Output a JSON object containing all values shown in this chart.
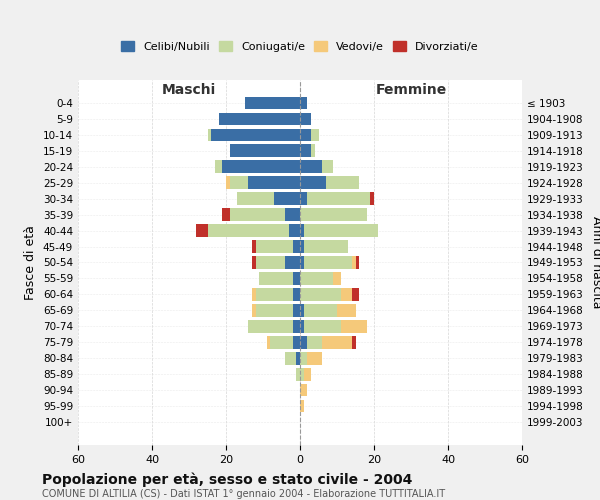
{
  "age_groups": [
    "0-4",
    "5-9",
    "10-14",
    "15-19",
    "20-24",
    "25-29",
    "30-34",
    "35-39",
    "40-44",
    "45-49",
    "50-54",
    "55-59",
    "60-64",
    "65-69",
    "70-74",
    "75-79",
    "80-84",
    "85-89",
    "90-94",
    "95-99",
    "100+"
  ],
  "birth_years": [
    "1999-2003",
    "1994-1998",
    "1989-1993",
    "1984-1988",
    "1979-1983",
    "1974-1978",
    "1969-1973",
    "1964-1968",
    "1959-1963",
    "1954-1958",
    "1949-1953",
    "1944-1948",
    "1939-1943",
    "1934-1938",
    "1929-1933",
    "1924-1928",
    "1919-1923",
    "1914-1918",
    "1909-1913",
    "1904-1908",
    "≤ 1903"
  ],
  "maschi": {
    "celibi": [
      15,
      22,
      24,
      19,
      21,
      14,
      7,
      4,
      3,
      2,
      4,
      2,
      2,
      2,
      2,
      2,
      1,
      0,
      0,
      0,
      0
    ],
    "coniugati": [
      0,
      0,
      1,
      0,
      2,
      5,
      10,
      15,
      22,
      10,
      8,
      9,
      10,
      10,
      12,
      6,
      3,
      1,
      0,
      0,
      0
    ],
    "vedovi": [
      0,
      0,
      0,
      0,
      0,
      1,
      0,
      0,
      0,
      0,
      0,
      0,
      1,
      1,
      0,
      1,
      0,
      0,
      0,
      0,
      0
    ],
    "divorziati": [
      0,
      0,
      0,
      0,
      0,
      0,
      0,
      2,
      3,
      1,
      1,
      0,
      0,
      0,
      0,
      0,
      0,
      0,
      0,
      0,
      0
    ]
  },
  "femmine": {
    "nubili": [
      2,
      3,
      3,
      3,
      6,
      7,
      2,
      0,
      1,
      1,
      1,
      0,
      0,
      1,
      1,
      2,
      0,
      0,
      0,
      0,
      0
    ],
    "coniugate": [
      0,
      0,
      2,
      1,
      3,
      9,
      17,
      18,
      20,
      12,
      13,
      9,
      11,
      9,
      10,
      4,
      2,
      1,
      0,
      0,
      0
    ],
    "vedove": [
      0,
      0,
      0,
      0,
      0,
      0,
      0,
      0,
      0,
      0,
      1,
      2,
      3,
      5,
      7,
      8,
      4,
      2,
      2,
      1,
      0
    ],
    "divorziate": [
      0,
      0,
      0,
      0,
      0,
      0,
      1,
      0,
      0,
      0,
      1,
      0,
      2,
      0,
      0,
      1,
      0,
      0,
      0,
      0,
      0
    ]
  },
  "colors": {
    "celibi": "#3A6EA5",
    "coniugati": "#C5D9A0",
    "vedovi": "#F5C97A",
    "divorziati": "#C0302A"
  },
  "xlim": 60,
  "title": "Popolazione per età, sesso e stato civile - 2004",
  "subtitle": "COMUNE DI ALTILIA (CS) - Dati ISTAT 1° gennaio 2004 - Elaborazione TUTTITALIA.IT",
  "ylabel_left": "Fasce di età",
  "ylabel_right": "Anni di nascita",
  "xlabel_left": "Maschi",
  "xlabel_right": "Femmine",
  "legend_labels": [
    "Celibi/Nubili",
    "Coniugati/e",
    "Vedovi/e",
    "Divorziati/e"
  ],
  "bg_color": "#f0f0f0",
  "plot_bg": "#ffffff"
}
